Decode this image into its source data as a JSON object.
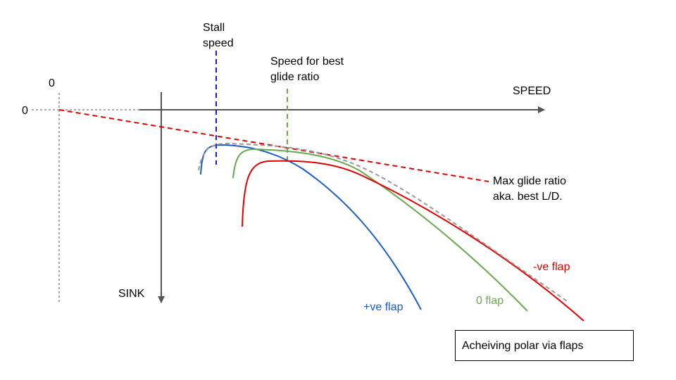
{
  "axes": {
    "x_label": "SPEED",
    "y_label": "SINK",
    "origin_x_label": "0",
    "origin_y_label": "0",
    "color": "#555555"
  },
  "annotations": {
    "stall_speed": "Stall\nspeed",
    "best_glide_speed": "Speed for best\nglide ratio",
    "max_glide": "Max glide ratio\naka. best L/D."
  },
  "curves": {
    "positive_flap": {
      "label": "+ve flap",
      "color": "#1a5cc8"
    },
    "zero_flap": {
      "label": "0 flap",
      "color": "#6aa84f"
    },
    "negative_flap": {
      "label": "-ve flap",
      "color": "#e00000"
    },
    "envelope": {
      "color": "#999999"
    }
  },
  "lines": {
    "tangent": {
      "color": "#e00000"
    },
    "stall_marker": {
      "color": "#1a1ad0"
    },
    "best_glide_marker": {
      "color": "#6aa84f"
    }
  },
  "caption": "Acheiving polar via flaps"
}
